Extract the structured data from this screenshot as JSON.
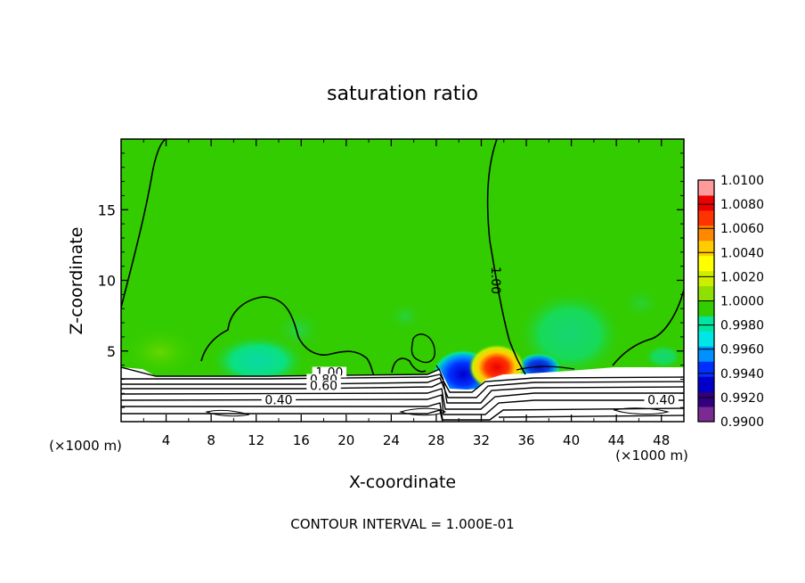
{
  "chart_data": {
    "type": "heatmap",
    "title": "saturation ratio",
    "xlabel": "X-coordinate",
    "ylabel": "Z-coordinate",
    "x_unit": "(×1000 m)",
    "footer": "CONTOUR INTERVAL = 1.000E-01",
    "xlim": [
      0,
      50
    ],
    "ylim": [
      0,
      20
    ],
    "x_ticks": [
      4,
      8,
      12,
      16,
      20,
      24,
      28,
      32,
      36,
      40,
      44,
      48
    ],
    "y_ticks": [
      5,
      10,
      15
    ],
    "contour_labels": [
      {
        "text": "1.00",
        "x": 18.5,
        "z": 3.5
      },
      {
        "text": "0.80",
        "x": 18.0,
        "z": 3.0
      },
      {
        "text": "0.60",
        "x": 18.0,
        "z": 2.55
      },
      {
        "text": "0.40",
        "x": 14.0,
        "z": 1.55
      },
      {
        "text": "0.40",
        "x": 48.0,
        "z": 1.55
      },
      {
        "text": "1.00",
        "x": 33.3,
        "z": 10.0,
        "rotated": true
      }
    ],
    "colorbar": {
      "min": 0.99,
      "max": 1.01,
      "labels": [
        "1.0100",
        "1.0080",
        "1.0060",
        "1.0040",
        "1.0020",
        "1.0000",
        "0.9980",
        "0.9960",
        "0.9940",
        "0.9920",
        "0.9900"
      ],
      "colors": [
        "#7a2a92",
        "#32007e",
        "#0000ca",
        "#0030ff",
        "#0090ff",
        "#00e6e6",
        "#00e6a0",
        "#33cc00",
        "#8fe000",
        "#ccee00",
        "#ffff00",
        "#ffcc00",
        "#ff8800",
        "#ff3300",
        "#ee0000",
        "#ff9a9a"
      ]
    }
  }
}
